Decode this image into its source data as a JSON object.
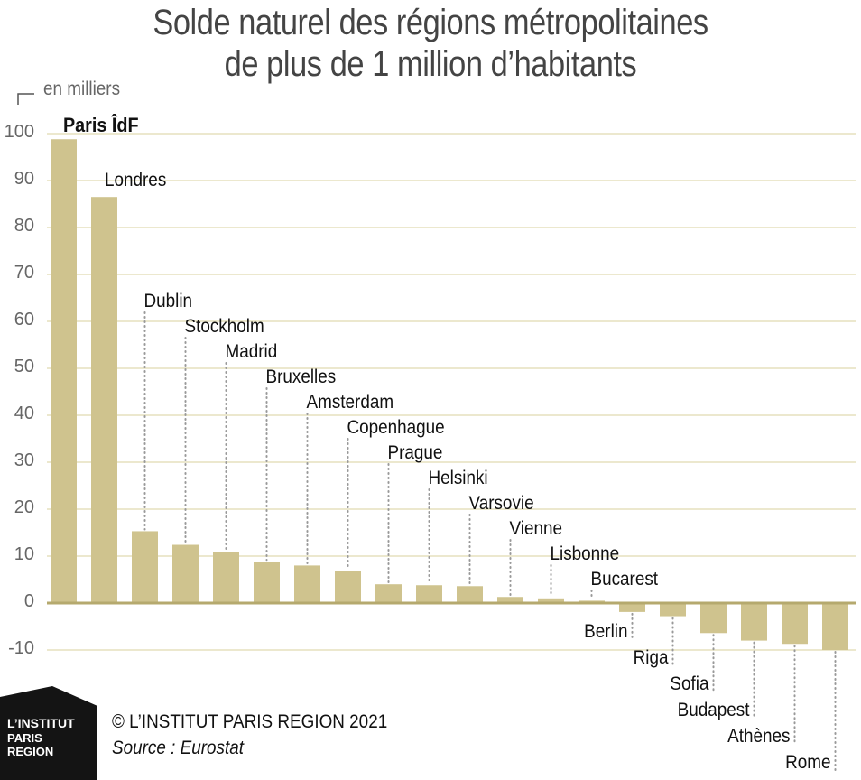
{
  "chart_data": {
    "type": "bar",
    "title_lines": [
      "Solde naturel des régions métropolitaines",
      "de plus de 1 million d’habitants"
    ],
    "ylabel": "en milliers",
    "ylim": [
      -10,
      100
    ],
    "yticks": [
      100,
      90,
      80,
      70,
      60,
      50,
      40,
      30,
      20,
      10,
      0,
      -10
    ],
    "grid": true,
    "categories": [
      "Paris ÎdF",
      "Londres",
      "Dublin",
      "Stockholm",
      "Madrid",
      "Bruxelles",
      "Amsterdam",
      "Copenhague",
      "Prague",
      "Helsinki",
      "Varsovie",
      "Vienne",
      "Lisbonne",
      "Bucarest",
      "Berlin",
      "Riga",
      "Sofia",
      "Budapest",
      "Athènes",
      "Rome"
    ],
    "values": [
      98.8,
      86.5,
      15.3,
      12.4,
      10.9,
      8.8,
      8.0,
      6.8,
      4.0,
      3.8,
      3.6,
      1.3,
      1.0,
      0.5,
      -1.9,
      -2.8,
      -6.4,
      -8.0,
      -8.7,
      -10.0
    ],
    "bar_color": "#cfc38e",
    "grid_color": "#e6e0bd",
    "baseline_color": "#b5a96e"
  },
  "footer": {
    "logo_lines": [
      "L’INSTITUT",
      "PARIS",
      "REGION"
    ],
    "credit": "© L’INSTITUT PARIS REGION 2021",
    "source": "Source : Eurostat"
  }
}
